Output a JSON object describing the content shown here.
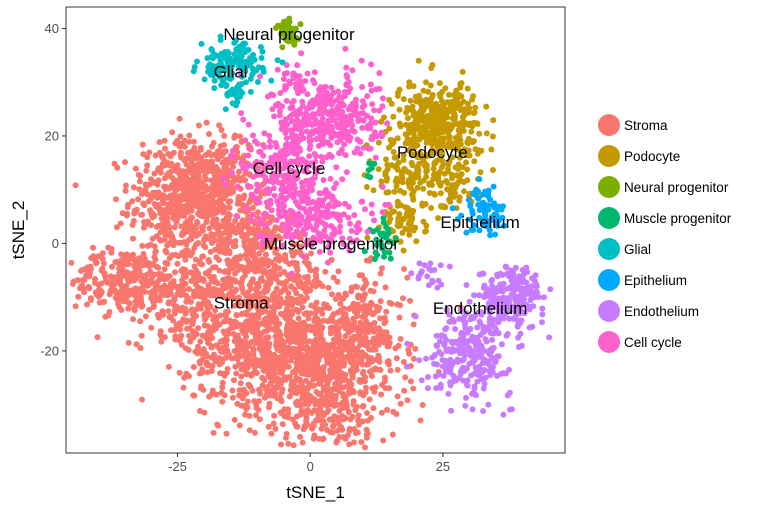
{
  "chart_data": {
    "type": "scatter",
    "title": "",
    "xlabel": "tSNE_1",
    "ylabel": "tSNE_2",
    "xlim": [
      -46,
      48
    ],
    "ylim": [
      -39,
      44
    ],
    "xticks": [
      -25,
      0,
      25
    ],
    "yticks": [
      -20,
      0,
      20,
      40
    ],
    "xtick_labels": [
      "-25",
      "0",
      "25"
    ],
    "ytick_labels": [
      "-20",
      "0",
      "20",
      "40"
    ],
    "grid": false,
    "legend_position": "right",
    "series": [
      {
        "name": "Stroma",
        "color": "#F8766D",
        "label_at": [
          -13,
          -11
        ],
        "regions": [
          {
            "cx": -24,
            "cy": 8,
            "sx": 5,
            "sy": 6,
            "n": 500
          },
          {
            "cx": -17,
            "cy": 12,
            "sx": 4,
            "sy": 4,
            "n": 180
          },
          {
            "cx": -13,
            "cy": 2,
            "sx": 5,
            "sy": 4,
            "n": 200
          },
          {
            "cx": -35,
            "cy": -7,
            "sx": 5,
            "sy": 3,
            "n": 260
          },
          {
            "cx": -24,
            "cy": -9,
            "sx": 5,
            "sy": 4,
            "n": 200
          },
          {
            "cx": -8,
            "cy": -18,
            "sx": 8,
            "sy": 6,
            "n": 800
          },
          {
            "cx": 3,
            "cy": -25,
            "sx": 7,
            "sy": 6,
            "n": 500
          },
          {
            "cx": 10,
            "cy": -16,
            "sx": 4,
            "sy": 5,
            "n": 200
          },
          {
            "cx": -8,
            "cy": -6,
            "sx": 6,
            "sy": 4,
            "n": 250
          },
          {
            "cx": 3,
            "cy": -33,
            "sx": 5,
            "sy": 2,
            "n": 60
          }
        ]
      },
      {
        "name": "Podocyte",
        "color": "#C49A00",
        "label_at": [
          23,
          17
        ],
        "regions": [
          {
            "cx": 24,
            "cy": 22,
            "sx": 4,
            "sy": 4,
            "n": 380
          },
          {
            "cx": 20,
            "cy": 12,
            "sx": 4,
            "sy": 3,
            "n": 120
          },
          {
            "cx": 18,
            "cy": 4,
            "sx": 2,
            "sy": 2,
            "n": 60
          },
          {
            "cx": 28,
            "cy": 10,
            "sx": 2,
            "sy": 2,
            "n": 30
          }
        ]
      },
      {
        "name": "Neural progenitor",
        "color": "#7CAE00",
        "label_at": [
          -4,
          39
        ],
        "regions": [
          {
            "cx": -4,
            "cy": 39,
            "sx": 1.2,
            "sy": 1.3,
            "n": 40
          }
        ]
      },
      {
        "name": "Muscle progenitor",
        "color": "#00B76D",
        "label_at": [
          4,
          0
        ],
        "regions": [
          {
            "cx": 14,
            "cy": 1,
            "sx": 1.4,
            "sy": 2,
            "n": 30
          },
          {
            "cx": 11,
            "cy": 14,
            "sx": 0.6,
            "sy": 1.5,
            "n": 6
          }
        ]
      },
      {
        "name": "Glial",
        "color": "#00BFC4",
        "label_at": [
          -15,
          32
        ],
        "regions": [
          {
            "cx": -15,
            "cy": 33,
            "sx": 3,
            "sy": 2,
            "n": 140
          },
          {
            "cx": -14,
            "cy": 28,
            "sx": 1.5,
            "sy": 1.2,
            "n": 20
          }
        ]
      },
      {
        "name": "Epithelium",
        "color": "#00A9FF",
        "label_at": [
          32,
          4
        ],
        "regions": [
          {
            "cx": 33,
            "cy": 6,
            "sx": 2,
            "sy": 2.2,
            "n": 70
          }
        ]
      },
      {
        "name": "Endothelium",
        "color": "#C77CFF",
        "label_at": [
          32,
          -12
        ],
        "regions": [
          {
            "cx": 38,
            "cy": -10,
            "sx": 3,
            "sy": 3,
            "n": 200
          },
          {
            "cx": 30,
            "cy": -20,
            "sx": 4,
            "sy": 4,
            "n": 260
          },
          {
            "cx": 23,
            "cy": -6,
            "sx": 1.5,
            "sy": 1.5,
            "n": 20
          }
        ]
      },
      {
        "name": "Cell cycle",
        "color": "#FF61CC",
        "label_at": [
          -4,
          14
        ],
        "regions": [
          {
            "cx": 3,
            "cy": 23,
            "sx": 5,
            "sy": 4,
            "n": 380
          },
          {
            "cx": -5,
            "cy": 13,
            "sx": 4,
            "sy": 4,
            "n": 200
          },
          {
            "cx": 0,
            "cy": 5,
            "sx": 5,
            "sy": 3,
            "n": 200
          },
          {
            "cx": -2,
            "cy": 31,
            "sx": 1.5,
            "sy": 1.5,
            "n": 25
          }
        ]
      }
    ]
  }
}
